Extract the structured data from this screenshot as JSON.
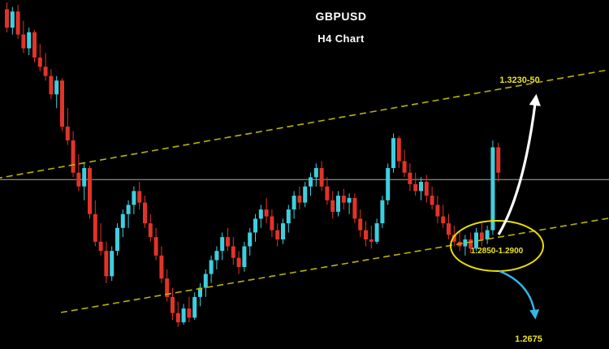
{
  "header": {
    "symbol": "GBPUSD",
    "timeframe": "H4 Chart"
  },
  "labels": {
    "upper_target": "1.3230-50",
    "support_zone": "1.2850-1.2900",
    "lower_target": "1.2675"
  },
  "colors": {
    "background": "#000000",
    "bullish_candle": "#3ecfdf",
    "bearish_candle": "#e23329",
    "trendline": "#b9b400",
    "annotation_text": "#ece22a",
    "highlight_ellipse": "#e8df00",
    "up_arrow": "#ffffff",
    "down_arrow": "#2fb9ea",
    "price_line": "#c9c9c9"
  },
  "chart_data": {
    "type": "candlestick",
    "title": "GBPUSD",
    "subtitle": "H4 Chart",
    "symbol": "GBPUSD",
    "timeframe": "H4",
    "grid": false,
    "y_axis": {
      "price_top": 1.3415,
      "price_bottom": 1.2657,
      "visible_labels": [
        "1.3230-50",
        "1.2850-1.2900",
        "1.2675"
      ]
    },
    "price_line": 1.3025,
    "candles": [
      [
        1.3395,
        1.341,
        1.3345,
        1.3355
      ],
      [
        1.3355,
        1.34,
        1.334,
        1.339
      ],
      [
        1.339,
        1.3405,
        1.333,
        1.334
      ],
      [
        1.334,
        1.337,
        1.33,
        1.331
      ],
      [
        1.331,
        1.3355,
        1.3295,
        1.3345
      ],
      [
        1.3345,
        1.335,
        1.328,
        1.329
      ],
      [
        1.329,
        1.332,
        1.326,
        1.327
      ],
      [
        1.327,
        1.33,
        1.324,
        1.325
      ],
      [
        1.325,
        1.3265,
        1.32,
        1.321
      ],
      [
        1.321,
        1.325,
        1.318,
        1.324
      ],
      [
        1.324,
        1.3245,
        1.313,
        1.314
      ],
      [
        1.314,
        1.318,
        1.31,
        1.311
      ],
      [
        1.311,
        1.313,
        1.303,
        1.304
      ],
      [
        1.304,
        1.308,
        1.3,
        1.301
      ],
      [
        1.301,
        1.306,
        1.298,
        1.305
      ],
      [
        1.305,
        1.3055,
        1.294,
        1.295
      ],
      [
        1.295,
        1.298,
        1.288,
        1.289
      ],
      [
        1.289,
        1.293,
        1.286,
        1.287
      ],
      [
        1.287,
        1.289,
        1.28,
        1.2815
      ],
      [
        1.2815,
        1.288,
        1.2805,
        1.287
      ],
      [
        1.287,
        1.293,
        1.286,
        1.292
      ],
      [
        1.292,
        1.296,
        1.29,
        1.295
      ],
      [
        1.295,
        1.298,
        1.292,
        1.297
      ],
      [
        1.297,
        1.301,
        1.295,
        1.3
      ],
      [
        1.3,
        1.302,
        1.296,
        1.2975
      ],
      [
        1.2975,
        1.299,
        1.292,
        1.293
      ],
      [
        1.293,
        1.295,
        1.289,
        1.29
      ],
      [
        1.29,
        1.292,
        1.285,
        1.286
      ],
      [
        1.286,
        1.288,
        1.28,
        1.281
      ],
      [
        1.281,
        1.283,
        1.276,
        1.277
      ],
      [
        1.277,
        1.279,
        1.272,
        1.2735
      ],
      [
        1.2735,
        1.276,
        1.2705,
        1.2715
      ],
      [
        1.2715,
        1.2755,
        1.271,
        1.2745
      ],
      [
        1.2745,
        1.277,
        1.2715,
        1.2725
      ],
      [
        1.2725,
        1.278,
        1.272,
        1.277
      ],
      [
        1.277,
        1.28,
        1.275,
        1.279
      ],
      [
        1.279,
        1.283,
        1.277,
        1.282
      ],
      [
        1.282,
        1.286,
        1.28,
        1.285
      ],
      [
        1.285,
        1.288,
        1.283,
        1.287
      ],
      [
        1.287,
        1.291,
        1.285,
        1.29
      ],
      [
        1.29,
        1.292,
        1.287,
        1.288
      ],
      [
        1.288,
        1.29,
        1.284,
        1.2855
      ],
      [
        1.2855,
        1.287,
        1.282,
        1.2835
      ],
      [
        1.2835,
        1.289,
        1.2825,
        1.288
      ],
      [
        1.288,
        1.292,
        1.286,
        1.291
      ],
      [
        1.291,
        1.295,
        1.289,
        1.294
      ],
      [
        1.294,
        1.297,
        1.292,
        1.296
      ],
      [
        1.296,
        1.2985,
        1.293,
        1.2945
      ],
      [
        1.2945,
        1.296,
        1.29,
        1.2915
      ],
      [
        1.2915,
        1.293,
        1.288,
        1.2895
      ],
      [
        1.2895,
        1.294,
        1.2885,
        1.293
      ],
      [
        1.293,
        1.297,
        1.291,
        1.296
      ],
      [
        1.296,
        1.3,
        1.294,
        1.299
      ],
      [
        1.299,
        1.301,
        1.296,
        1.2975
      ],
      [
        1.2975,
        1.302,
        1.2965,
        1.301
      ],
      [
        1.301,
        1.304,
        1.299,
        1.303
      ],
      [
        1.303,
        1.306,
        1.301,
        1.305
      ],
      [
        1.305,
        1.3065,
        1.3,
        1.301
      ],
      [
        1.301,
        1.303,
        1.297,
        1.298
      ],
      [
        1.298,
        1.3,
        1.294,
        1.2955
      ],
      [
        1.2955,
        1.3,
        1.2945,
        1.299
      ],
      [
        1.299,
        1.3005,
        1.296,
        1.2975
      ],
      [
        1.2975,
        1.2995,
        1.295,
        1.2985
      ],
      [
        1.2985,
        1.2995,
        1.293,
        1.294
      ],
      [
        1.294,
        1.296,
        1.29,
        1.2915
      ],
      [
        1.2915,
        1.2935,
        1.288,
        1.2895
      ],
      [
        1.2895,
        1.2925,
        1.2875,
        1.289
      ],
      [
        1.289,
        1.294,
        1.2885,
        1.293
      ],
      [
        1.293,
        1.299,
        1.292,
        1.298
      ],
      [
        1.298,
        1.306,
        1.297,
        1.305
      ],
      [
        1.305,
        1.3125,
        1.304,
        1.3115
      ],
      [
        1.3115,
        1.312,
        1.305,
        1.3065
      ],
      [
        1.3065,
        1.309,
        1.303,
        1.304
      ],
      [
        1.304,
        1.306,
        1.3,
        1.3015
      ],
      [
        1.3015,
        1.304,
        1.299,
        1.3
      ],
      [
        1.3,
        1.303,
        1.298,
        1.302
      ],
      [
        1.302,
        1.3035,
        1.2975,
        1.299
      ],
      [
        1.299,
        1.301,
        1.296,
        1.297
      ],
      [
        1.297,
        1.299,
        1.293,
        1.2945
      ],
      [
        1.2945,
        1.297,
        1.292,
        1.293
      ],
      [
        1.293,
        1.295,
        1.2895,
        1.2905
      ],
      [
        1.2905,
        1.2925,
        1.288,
        1.289
      ],
      [
        1.289,
        1.2915,
        1.287,
        1.288
      ],
      [
        1.288,
        1.2905,
        1.286,
        1.2895
      ],
      [
        1.2895,
        1.291,
        1.2865,
        1.2875
      ],
      [
        1.2875,
        1.292,
        1.287,
        1.291
      ],
      [
        1.291,
        1.293,
        1.288,
        1.2895
      ],
      [
        1.2895,
        1.2925,
        1.2885,
        1.2915
      ],
      [
        1.2915,
        1.311,
        1.2905,
        1.3095
      ],
      [
        1.3095,
        1.3105,
        1.302,
        1.304
      ]
    ],
    "annotations": {
      "resistance_trendline": {
        "label": "1.3230-50",
        "style": "yellow dashed rising line"
      },
      "support_trendline": {
        "style": "yellow dashed rising line"
      },
      "support_zone": {
        "label": "1.2850-1.2900",
        "shape": "yellow ellipse highlight"
      },
      "bullish_scenario_arrow": {
        "direction": "up",
        "target": "1.3230-50",
        "color": "white"
      },
      "bearish_scenario_arrow": {
        "direction": "down",
        "target": "1.2675",
        "color": "cyan"
      }
    }
  }
}
